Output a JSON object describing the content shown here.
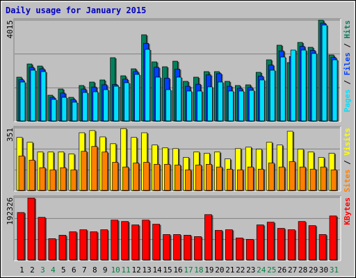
{
  "chart_data": {
    "type": "bar",
    "title": "Daily usage for January 2015",
    "categories": [
      "1",
      "2",
      "3",
      "4",
      "5",
      "6",
      "7",
      "8",
      "9",
      "10",
      "11",
      "12",
      "13",
      "14",
      "15",
      "16",
      "17",
      "18",
      "19",
      "20",
      "21",
      "22",
      "23",
      "24",
      "25",
      "26",
      "27",
      "28",
      "29",
      "30",
      "31"
    ],
    "weekend_indices": [
      2,
      3,
      9,
      10,
      16,
      17,
      23,
      24,
      30
    ],
    "weekend_color": "#008040",
    "legend_separator": " / ",
    "panels": [
      {
        "ylim": [
          0,
          4015
        ],
        "yticks": [
          4015
        ],
        "grid": true,
        "series": [
          {
            "name": "Hits",
            "color": "#00805c",
            "values": [
              1760,
              2282,
              2200,
              1045,
              1292,
              962,
              1430,
              1567,
              1650,
              2530,
              1815,
              2090,
              3437,
              2365,
              2172,
              2392,
              1595,
              1760,
              1980,
              1980,
              1595,
              1430,
              1457,
              1952,
              2447,
              3025,
              2337,
              3135,
              2942,
              4015,
              2640
            ]
          },
          {
            "name": "Files",
            "color": "#0040ff",
            "values": [
              1660,
              2150,
              2090,
              960,
              1130,
              870,
              1290,
              1370,
              1460,
              1470,
              1680,
              1980,
              3100,
              2150,
              1720,
              2080,
              1400,
              1480,
              1850,
              1900,
              1400,
              1320,
              1350,
              1800,
              2240,
              2800,
              2580,
              2980,
              2820,
              3900,
              2540
            ]
          },
          {
            "name": "Pages",
            "color": "#00e0ff",
            "values": [
              1567,
              2035,
              1980,
              880,
              962,
              770,
              1155,
              1182,
              1265,
              1402,
              1540,
              1870,
              2860,
              1760,
              1265,
              1760,
              1210,
              1210,
              1375,
              1567,
              1210,
              1210,
              1237,
              1650,
              2035,
              2557,
              2832,
              2832,
              2695,
              3822,
              2447
            ]
          }
        ]
      },
      {
        "ylim": [
          0,
          351
        ],
        "yticks": [
          351
        ],
        "grid": true,
        "series": [
          {
            "name": "Visits",
            "color": "#ffff00",
            "values": [
              298,
              271,
              217,
              217,
              217,
              206,
              324,
              336,
              301,
              263,
              347,
              298,
              324,
              256,
              240,
              236,
              187,
              217,
              210,
              217,
              179,
              236,
              244,
              233,
              271,
              256,
              332,
              233,
              217,
              187,
              210
            ]
          },
          {
            "name": "Sites",
            "color": "#ff8000",
            "values": [
              195,
              172,
              130,
              118,
              130,
              118,
              221,
              248,
              217,
              160,
              134,
              156,
              160,
              149,
              149,
              145,
              118,
              145,
              149,
              134,
              122,
              118,
              134,
              122,
              156,
              134,
              164,
              134,
              122,
              134,
              118
            ]
          }
        ]
      },
      {
        "ylim": [
          0,
          192326
        ],
        "yticks": [
          192326
        ],
        "grid": true,
        "series": [
          {
            "name": "KBytes",
            "color": "#ff0000",
            "values": [
              146300,
              190000,
              131700,
              66900,
              77300,
              87800,
              94000,
              87800,
              94000,
              123300,
              119100,
              108700,
              123300,
              110800,
              79400,
              79400,
              77300,
              73200,
              140000,
              92000,
              94000,
              69000,
              64800,
              108700,
              117000,
              98200,
              94000,
              119100,
              106600,
              79400,
              135900
            ]
          }
        ]
      }
    ]
  }
}
